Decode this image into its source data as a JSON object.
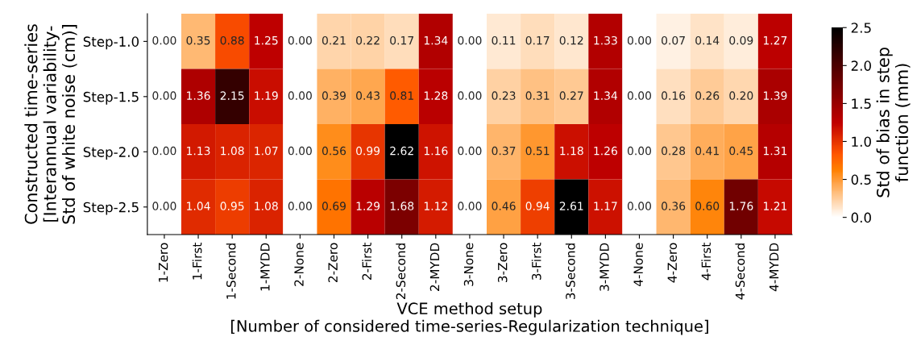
{
  "chart_data": {
    "type": "heatmap",
    "xlabel": "VCE method setup\n[Number of considered time-series-Regularization technique]",
    "ylabel": "Constructed time-series\n[Interannual variability-\nStd of white noise (cm)]",
    "clabel": "Std of bias in step\nfunction (mm)",
    "categories": [
      "1-Zero",
      "1-First",
      "1-Second",
      "1-MYDD",
      "2-None",
      "2-Zero",
      "2-First",
      "2-Second",
      "2-MYDD",
      "3-None",
      "3-Zero",
      "3-First",
      "3-Second",
      "3-MYDD",
      "4-None",
      "4-Zero",
      "4-First",
      "4-Second",
      "4-MYDD"
    ],
    "y_categories": [
      "Step-1.0",
      "Step-1.5",
      "Step-2.0",
      "Step-2.5"
    ],
    "cells": [
      [
        0.0,
        0.35,
        0.88,
        1.25,
        0.0,
        0.21,
        0.22,
        0.17,
        1.34,
        0.0,
        0.11,
        0.17,
        0.12,
        1.33,
        0.0,
        0.07,
        0.14,
        0.09,
        1.27
      ],
      [
        0.0,
        1.36,
        2.15,
        1.19,
        0.0,
        0.39,
        0.43,
        0.81,
        1.28,
        0.0,
        0.23,
        0.31,
        0.27,
        1.34,
        0.0,
        0.16,
        0.26,
        0.2,
        1.39
      ],
      [
        0.0,
        1.13,
        1.08,
        1.07,
        0.0,
        0.56,
        0.99,
        2.62,
        1.16,
        0.0,
        0.37,
        0.51,
        1.18,
        1.26,
        0.0,
        0.28,
        0.41,
        0.45,
        1.31
      ],
      [
        0.0,
        1.04,
        0.95,
        1.08,
        0.0,
        0.69,
        1.29,
        1.68,
        1.12,
        0.0,
        0.46,
        0.94,
        2.61,
        1.17,
        0.0,
        0.36,
        0.6,
        1.76,
        1.21
      ]
    ],
    "cell_labels": [
      [
        "0.00",
        "0.35",
        "0.88",
        "1.25",
        "0.00",
        "0.21",
        "0.22",
        "0.17",
        "1.34",
        "0.00",
        "0.11",
        "0.17",
        "0.12",
        "1.33",
        "0.00",
        "0.07",
        "0.14",
        "0.09",
        "1.27"
      ],
      [
        "0.00",
        "1.36",
        "2.15",
        "1.19",
        "0.00",
        "0.39",
        "0.43",
        "0.81",
        "1.28",
        "0.00",
        "0.23",
        "0.31",
        "0.27",
        "1.34",
        "0.00",
        "0.16",
        "0.26",
        "0.20",
        "1.39"
      ],
      [
        "0.00",
        "1.13",
        "1.08",
        "1.07",
        "0.00",
        "0.56",
        "0.99",
        "2.62",
        "1.16",
        "0.00",
        "0.37",
        "0.51",
        "1.18",
        "1.26",
        "0.00",
        "0.28",
        "0.41",
        "0.45",
        "1.31"
      ],
      [
        "0.00",
        "1.04",
        "0.95",
        "1.08",
        "0.00",
        "0.69",
        "1.29",
        "1.68",
        "1.12",
        "0.00",
        "0.46",
        "0.94",
        "2.61",
        "1.17",
        "0.00",
        "0.36",
        "0.60",
        "1.76",
        "1.21"
      ]
    ],
    "clim": [
      0.0,
      2.5
    ],
    "cticks": [
      {
        "value": 0.0,
        "label": "0.0"
      },
      {
        "value": 0.5,
        "label": "0.5"
      },
      {
        "value": 1.0,
        "label": "1.0"
      },
      {
        "value": 1.5,
        "label": "1.5"
      },
      {
        "value": 2.0,
        "label": "2.0"
      },
      {
        "value": 2.5,
        "label": "2.5"
      }
    ]
  }
}
